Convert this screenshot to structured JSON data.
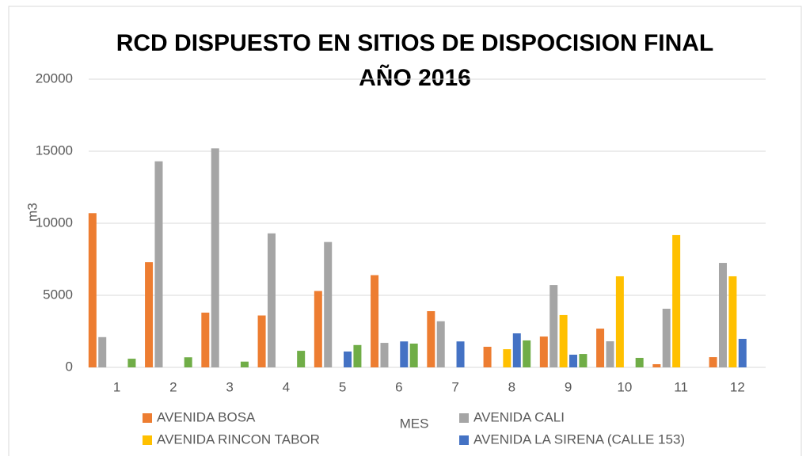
{
  "chart_data": {
    "type": "bar",
    "title": [
      "RCD DISPUESTO EN SITIOS DE DISPOCISION FINAL",
      "AÑO 2016"
    ],
    "ylabel": "m3",
    "xlabel": "MES",
    "categories": [
      "1",
      "2",
      "3",
      "4",
      "5",
      "6",
      "7",
      "8",
      "9",
      "10",
      "11",
      "12"
    ],
    "series": [
      {
        "name": "AVENIDA BOSA",
        "color": "#ed7d31",
        "values": [
          10700,
          7300,
          3800,
          3600,
          5300,
          6400,
          3900,
          1430,
          2140,
          2690,
          220,
          710
        ]
      },
      {
        "name": "AVENIDA CALI",
        "color": "#a5a5a5",
        "values": [
          2100,
          14300,
          15200,
          9300,
          8700,
          1700,
          3200,
          0,
          5710,
          1810,
          4070,
          7250
        ]
      },
      {
        "name": "AVENIDA RINCON TABOR",
        "color": "#ffc000",
        "values": [
          0,
          0,
          0,
          0,
          0,
          0,
          0,
          1260,
          3630,
          6320,
          9180,
          6320
        ]
      },
      {
        "name": "AVENIDA LA SIRENA (CALLE 153)",
        "color": "#4472c4",
        "values": [
          0,
          0,
          0,
          0,
          1100,
          1800,
          1800,
          2360,
          880,
          0,
          0,
          1980
        ]
      },
      {
        "color": "#70ad47",
        "values": [
          600,
          700,
          400,
          1150,
          1550,
          1650,
          0,
          1870,
          930,
          660,
          0,
          0
        ]
      }
    ],
    "ylim": [
      0,
      20000
    ],
    "yticks": [
      0,
      5000,
      10000,
      15000,
      20000
    ],
    "grid": true
  }
}
